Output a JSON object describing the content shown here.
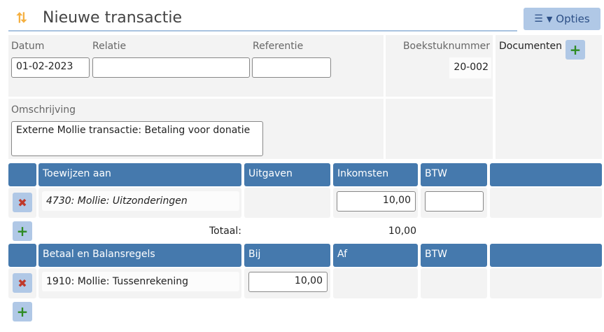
{
  "header": {
    "title": "Nieuwe transactie",
    "options_label": "Opties",
    "accent": "#f5b041"
  },
  "form": {
    "date_label": "Datum",
    "date_value": "01-02-2023",
    "relation_label": "Relatie",
    "relation_value": "",
    "reference_label": "Referentie",
    "reference_value": "",
    "booking_number_label": "Boekstuknummer",
    "booking_number_value": "20-002",
    "documents_label": "Documenten",
    "description_label": "Omschrijving",
    "description_value": "Externe Mollie transactie: Betaling voor donatie"
  },
  "allocation": {
    "headers": [
      "Toewijzen aan",
      "Uitgaven",
      "Inkomsten",
      "BTW"
    ],
    "rows": [
      {
        "account": "4730: Mollie: Uitzonderingen",
        "expenses": "",
        "income": "10,00",
        "vat": ""
      }
    ],
    "total_label": "Totaal:",
    "total_value": "10,00"
  },
  "balance": {
    "headers": [
      "Betaal en Balansregels",
      "Bij",
      "Af",
      "BTW"
    ],
    "rows": [
      {
        "account": "1910: Mollie: Tussenrekening",
        "debit": "10,00",
        "credit": "",
        "vat": ""
      }
    ]
  }
}
